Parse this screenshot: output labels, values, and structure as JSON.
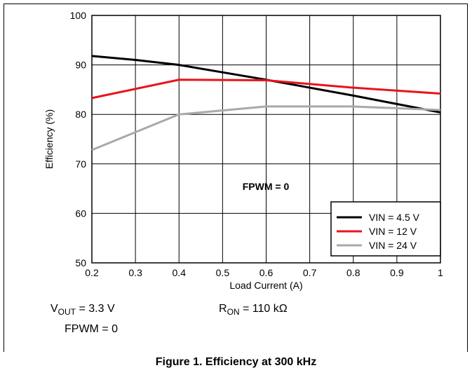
{
  "chart_data": {
    "type": "line",
    "xlabel": "Load Current (A)",
    "ylabel": "Efficiency (%)",
    "xlim": [
      0.2,
      1
    ],
    "ylim": [
      50,
      100
    ],
    "x_ticks": [
      "0.2",
      "0.3",
      "0.4",
      "0.5",
      "0.6",
      "0.7",
      "0.8",
      "0.9",
      "1"
    ],
    "y_ticks": [
      "50",
      "60",
      "70",
      "80",
      "90",
      "100"
    ],
    "grid": true,
    "legend_position": "bottom-right",
    "annotation": "FPWM = 0",
    "series": [
      {
        "name": "VIN = 4.5 V",
        "color": "#000000",
        "x": [
          0.2,
          0.3,
          0.4,
          0.5,
          0.6,
          0.7,
          0.8,
          0.9,
          1.0
        ],
        "y": [
          91.8,
          91.0,
          90.0,
          88.5,
          87.0,
          85.4,
          83.8,
          82.1,
          80.4
        ]
      },
      {
        "name": "VIN = 12 V",
        "color": "#e8141b",
        "x": [
          0.2,
          0.4,
          0.6,
          0.8,
          1.0
        ],
        "y": [
          83.3,
          87.0,
          86.9,
          85.4,
          84.2
        ]
      },
      {
        "name": "VIN = 24 V",
        "color": "#a9a9a9",
        "x": [
          0.2,
          0.4,
          0.6,
          0.8,
          1.0
        ],
        "y": [
          72.8,
          80.0,
          81.6,
          81.6,
          80.9
        ]
      }
    ]
  },
  "notes": {
    "vout_prefix": "V",
    "vout_sub": "OUT",
    "vout_suffix": " = 3.3 V",
    "ron_prefix": "R",
    "ron_sub": "ON",
    "ron_suffix": " = 110 kΩ",
    "fpwm": "FPWM = 0"
  },
  "caption": "Figure 1. Efficiency at 300 kHz"
}
